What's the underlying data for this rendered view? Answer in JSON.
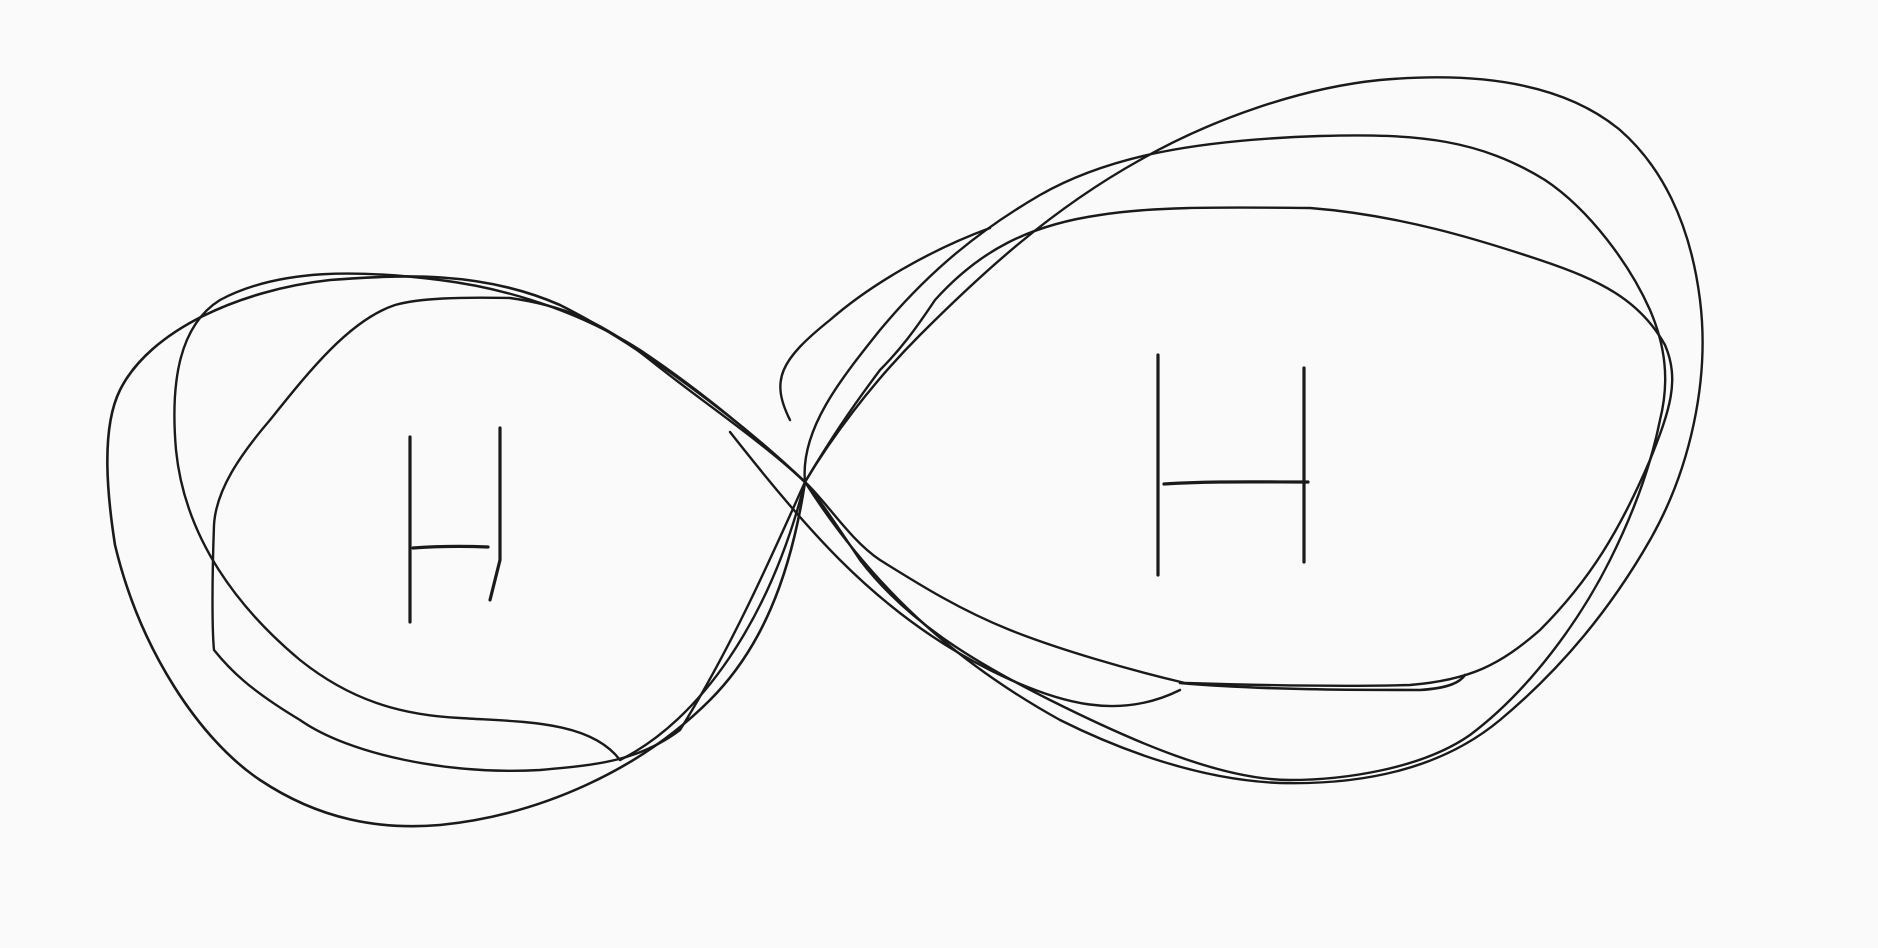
{
  "diagram": {
    "background": "#fafafa",
    "ink": "#1a1a1a",
    "nodes": [
      {
        "id": "left-lobe",
        "label": "H"
      },
      {
        "id": "right-lobe",
        "label": "H"
      }
    ]
  }
}
